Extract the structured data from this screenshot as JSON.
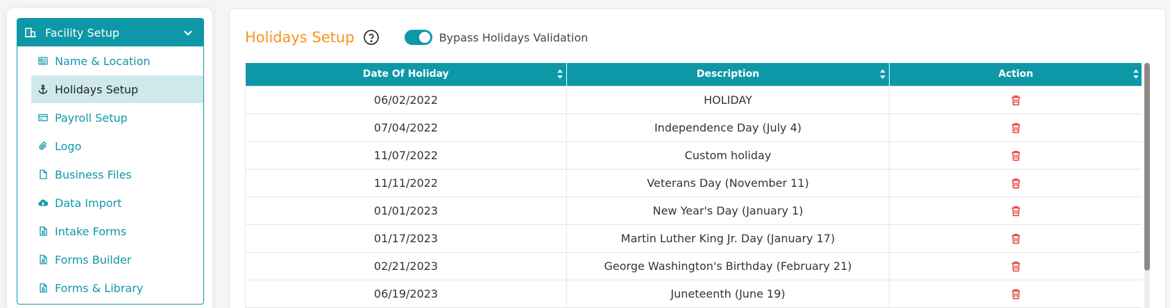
{
  "sidebar": {
    "header": {
      "title": "Facility Setup",
      "icon": "building-icon"
    },
    "items": [
      {
        "label": "Name & Location",
        "icon": "id-card-icon",
        "active": false
      },
      {
        "label": "Holidays Setup",
        "icon": "anchor-icon",
        "active": true
      },
      {
        "label": "Payroll Setup",
        "icon": "card-icon",
        "active": false
      },
      {
        "label": "Logo",
        "icon": "paperclip-icon",
        "active": false
      },
      {
        "label": "Business Files",
        "icon": "file-icon",
        "active": false
      },
      {
        "label": "Data Import",
        "icon": "cloud-download-icon",
        "active": false
      },
      {
        "label": "Intake Forms",
        "icon": "document-icon",
        "active": false
      },
      {
        "label": "Forms Builder",
        "icon": "document-icon",
        "active": false
      },
      {
        "label": "Forms & Library",
        "icon": "document-icon",
        "active": false
      }
    ]
  },
  "main": {
    "title": "Holidays Setup",
    "toggle": {
      "label": "Bypass Holidays Validation",
      "on": true
    },
    "table": {
      "columns": [
        "Date Of Holiday",
        "Description",
        "Action"
      ],
      "rows": [
        {
          "date": "06/02/2022",
          "description": "HOLIDAY"
        },
        {
          "date": "07/04/2022",
          "description": "Independence Day (July 4)"
        },
        {
          "date": "11/07/2022",
          "description": "Custom holiday"
        },
        {
          "date": "11/11/2022",
          "description": "Veterans Day (November 11)"
        },
        {
          "date": "01/01/2023",
          "description": "New Year's Day (January 1)"
        },
        {
          "date": "01/17/2023",
          "description": "Martin Luther King Jr. Day (January 17)"
        },
        {
          "date": "02/21/2023",
          "description": "George Washington's Birthday (February 21)"
        },
        {
          "date": "06/19/2023",
          "description": "Juneteenth (June 19)"
        }
      ]
    }
  },
  "colors": {
    "accent": "#0e98a7",
    "title": "#f7931e",
    "delete": "#e53935",
    "active_bg": "#cde9ec"
  }
}
